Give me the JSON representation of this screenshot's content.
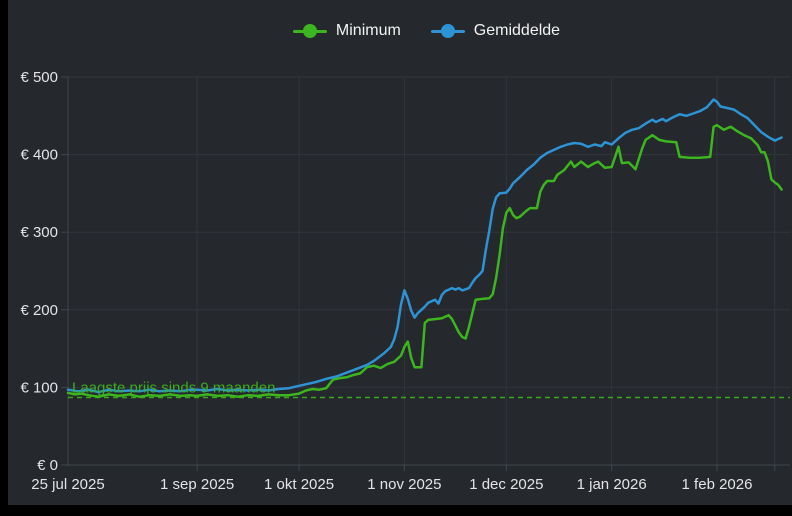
{
  "colors": {
    "background": "#25282c",
    "frame": "#000000",
    "grid": "#32363c",
    "axis": "#40464d",
    "tick_text": "#e4e4e6",
    "minimum_green": "#3cb51e",
    "gemiddelde_blue": "#2e93d4"
  },
  "legend": {
    "items": [
      {
        "label": "Minimum",
        "color": "#3cb51e"
      },
      {
        "label": "Gemiddelde",
        "color": "#2e93d4"
      }
    ]
  },
  "chart_data": {
    "type": "line",
    "title": "",
    "xlabel": "",
    "ylabel": "",
    "currency_prefix": "€",
    "x_tick_labels": [
      "25 jul 2025",
      "1 sep 2025",
      "1 okt 2025",
      "1 nov 2025",
      "1 dec 2025",
      "1 jan 2026",
      "1 feb 2026"
    ],
    "x_tick_days": [
      0,
      38,
      68,
      99,
      129,
      160,
      191
    ],
    "x_extra_gridline_days": [
      208
    ],
    "x_range_days": [
      0,
      210
    ],
    "ylim": [
      0,
      500
    ],
    "y_ticks": [
      0,
      100,
      200,
      300,
      400,
      500
    ],
    "y_tick_labels": [
      "€ 0",
      "€ 100",
      "€ 200",
      "€ 300",
      "€ 400",
      "€ 500"
    ],
    "grid": true,
    "legend_position": "top-center",
    "reference_line": {
      "value": 87,
      "label": "Laagste prijs sinds 9 maanden",
      "style": "dashed",
      "color": "#3cb51e"
    },
    "series": [
      {
        "name": "Minimum",
        "color": "#3cb51e",
        "points": [
          [
            0,
            93
          ],
          [
            2,
            91
          ],
          [
            4,
            92
          ],
          [
            6,
            90
          ],
          [
            9,
            88
          ],
          [
            12,
            91
          ],
          [
            15,
            89
          ],
          [
            18,
            91
          ],
          [
            21,
            88
          ],
          [
            24,
            90
          ],
          [
            27,
            89
          ],
          [
            30,
            91
          ],
          [
            33,
            89
          ],
          [
            36,
            90
          ],
          [
            38,
            89
          ],
          [
            41,
            91
          ],
          [
            44,
            89
          ],
          [
            47,
            90
          ],
          [
            50,
            88
          ],
          [
            53,
            90
          ],
          [
            56,
            89
          ],
          [
            59,
            91
          ],
          [
            62,
            90
          ],
          [
            65,
            90
          ],
          [
            68,
            92
          ],
          [
            70,
            96
          ],
          [
            72,
            98
          ],
          [
            74,
            97
          ],
          [
            76,
            99
          ],
          [
            78,
            110
          ],
          [
            80,
            112
          ],
          [
            82,
            113
          ],
          [
            84,
            116
          ],
          [
            86,
            118
          ],
          [
            88,
            126
          ],
          [
            90,
            128
          ],
          [
            92,
            125
          ],
          [
            94,
            130
          ],
          [
            96,
            133
          ],
          [
            98,
            141
          ],
          [
            99,
            152
          ],
          [
            100,
            159
          ],
          [
            101,
            138
          ],
          [
            102,
            126
          ],
          [
            104,
            126
          ],
          [
            105,
            183
          ],
          [
            106,
            187
          ],
          [
            108,
            188
          ],
          [
            110,
            189
          ],
          [
            112,
            193
          ],
          [
            113,
            188
          ],
          [
            115,
            171
          ],
          [
            116,
            165
          ],
          [
            117,
            163
          ],
          [
            118,
            178
          ],
          [
            119,
            196
          ],
          [
            120,
            213
          ],
          [
            122,
            214
          ],
          [
            124,
            215
          ],
          [
            125,
            220
          ],
          [
            126,
            241
          ],
          [
            127,
            270
          ],
          [
            128,
            305
          ],
          [
            129,
            325
          ],
          [
            130,
            331
          ],
          [
            131,
            322
          ],
          [
            132,
            318
          ],
          [
            133,
            320
          ],
          [
            135,
            328
          ],
          [
            136,
            331
          ],
          [
            138,
            331
          ],
          [
            139,
            352
          ],
          [
            140,
            361
          ],
          [
            141,
            366
          ],
          [
            143,
            366
          ],
          [
            144,
            374
          ],
          [
            146,
            380
          ],
          [
            148,
            391
          ],
          [
            149,
            384
          ],
          [
            151,
            391
          ],
          [
            153,
            384
          ],
          [
            155,
            389
          ],
          [
            156,
            391
          ],
          [
            158,
            383
          ],
          [
            160,
            384
          ],
          [
            162,
            410
          ],
          [
            163,
            389
          ],
          [
            165,
            390
          ],
          [
            167,
            381
          ],
          [
            169,
            408
          ],
          [
            170,
            419
          ],
          [
            172,
            425
          ],
          [
            174,
            419
          ],
          [
            176,
            417
          ],
          [
            179,
            416
          ],
          [
            180,
            397
          ],
          [
            183,
            396
          ],
          [
            186,
            396
          ],
          [
            189,
            397
          ],
          [
            190,
            436
          ],
          [
            191,
            438
          ],
          [
            193,
            432
          ],
          [
            195,
            436
          ],
          [
            197,
            430
          ],
          [
            199,
            425
          ],
          [
            201,
            421
          ],
          [
            203,
            412
          ],
          [
            204,
            403
          ],
          [
            205,
            403
          ],
          [
            206,
            391
          ],
          [
            207,
            368
          ],
          [
            208,
            364
          ],
          [
            209,
            361
          ],
          [
            210,
            355
          ]
        ]
      },
      {
        "name": "Gemiddelde",
        "color": "#2e93d4",
        "points": [
          [
            0,
            97
          ],
          [
            3,
            95
          ],
          [
            6,
            97
          ],
          [
            9,
            94
          ],
          [
            12,
            97
          ],
          [
            15,
            95
          ],
          [
            18,
            96
          ],
          [
            21,
            95
          ],
          [
            24,
            97
          ],
          [
            27,
            95
          ],
          [
            30,
            96
          ],
          [
            33,
            95
          ],
          [
            36,
            97
          ],
          [
            38,
            97
          ],
          [
            41,
            96
          ],
          [
            44,
            98
          ],
          [
            47,
            96
          ],
          [
            50,
            97
          ],
          [
            53,
            96
          ],
          [
            56,
            97
          ],
          [
            59,
            96
          ],
          [
            62,
            98
          ],
          [
            65,
            99
          ],
          [
            68,
            102
          ],
          [
            70,
            104
          ],
          [
            73,
            107
          ],
          [
            76,
            111
          ],
          [
            79,
            114
          ],
          [
            82,
            119
          ],
          [
            85,
            124
          ],
          [
            88,
            129
          ],
          [
            90,
            134
          ],
          [
            93,
            144
          ],
          [
            95,
            152
          ],
          [
            96,
            162
          ],
          [
            97,
            178
          ],
          [
            98,
            207
          ],
          [
            99,
            225
          ],
          [
            100,
            214
          ],
          [
            101,
            199
          ],
          [
            102,
            190
          ],
          [
            103,
            196
          ],
          [
            105,
            204
          ],
          [
            106,
            209
          ],
          [
            108,
            213
          ],
          [
            109,
            208
          ],
          [
            110,
            219
          ],
          [
            111,
            224
          ],
          [
            113,
            228
          ],
          [
            114,
            226
          ],
          [
            115,
            228
          ],
          [
            116,
            225
          ],
          [
            118,
            228
          ],
          [
            119,
            235
          ],
          [
            120,
            241
          ],
          [
            121,
            245
          ],
          [
            122,
            250
          ],
          [
            123,
            278
          ],
          [
            124,
            302
          ],
          [
            125,
            330
          ],
          [
            126,
            345
          ],
          [
            127,
            350
          ],
          [
            129,
            351
          ],
          [
            130,
            356
          ],
          [
            131,
            363
          ],
          [
            133,
            371
          ],
          [
            135,
            380
          ],
          [
            137,
            387
          ],
          [
            139,
            396
          ],
          [
            141,
            402
          ],
          [
            143,
            406
          ],
          [
            145,
            410
          ],
          [
            147,
            413
          ],
          [
            149,
            415
          ],
          [
            151,
            414
          ],
          [
            153,
            410
          ],
          [
            155,
            413
          ],
          [
            157,
            411
          ],
          [
            158,
            416
          ],
          [
            160,
            413
          ],
          [
            162,
            421
          ],
          [
            164,
            428
          ],
          [
            166,
            432
          ],
          [
            168,
            434
          ],
          [
            170,
            440
          ],
          [
            172,
            445
          ],
          [
            173,
            442
          ],
          [
            175,
            446
          ],
          [
            176,
            443
          ],
          [
            178,
            448
          ],
          [
            180,
            452
          ],
          [
            182,
            450
          ],
          [
            184,
            453
          ],
          [
            186,
            456
          ],
          [
            188,
            461
          ],
          [
            189,
            466
          ],
          [
            190,
            471
          ],
          [
            191,
            468
          ],
          [
            192,
            462
          ],
          [
            194,
            460
          ],
          [
            196,
            458
          ],
          [
            198,
            452
          ],
          [
            200,
            447
          ],
          [
            202,
            438
          ],
          [
            204,
            429
          ],
          [
            206,
            423
          ],
          [
            208,
            418
          ],
          [
            210,
            422
          ]
        ]
      }
    ]
  }
}
